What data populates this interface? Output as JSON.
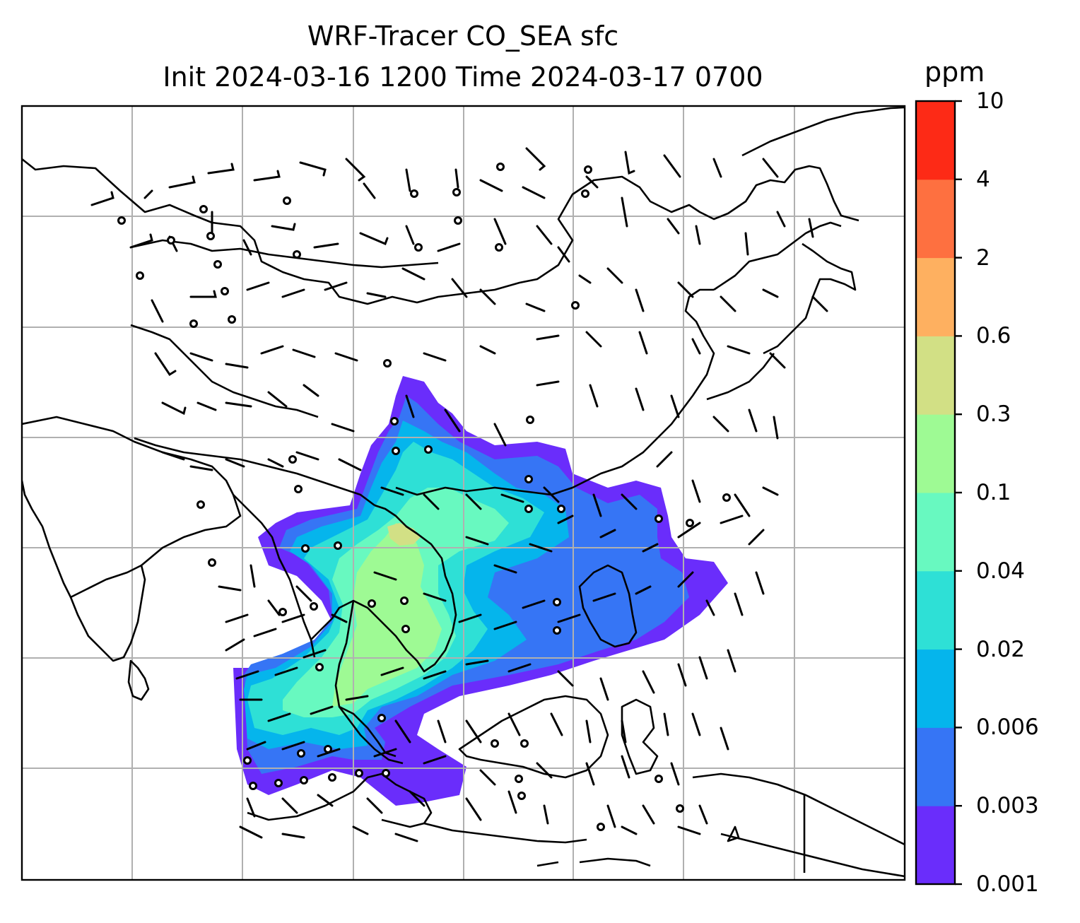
{
  "title": {
    "line1": "WRF-Tracer CO_SEA sfc",
    "line2": "Init 2024-03-16 1200 Time 2024-03-17 0700"
  },
  "colorbar": {
    "unit": "ppm",
    "levels": [
      "0.001",
      "0.003",
      "0.006",
      "0.02",
      "0.04",
      "0.1",
      "0.3",
      "0.6",
      "2",
      "4",
      "10"
    ],
    "colors": [
      "#6a2dfb",
      "#3675f5",
      "#05b5ec",
      "#2ee0d6",
      "#68f9c0",
      "#9efa94",
      "#d2e085",
      "#feb060",
      "#fe7040",
      "#fd2a16"
    ]
  },
  "map": {
    "graticule": "on",
    "wind_field": "barbs",
    "tracer_field": "filled-contours",
    "coastline_color": "#000000",
    "grid_color": "#b0b0b0"
  }
}
